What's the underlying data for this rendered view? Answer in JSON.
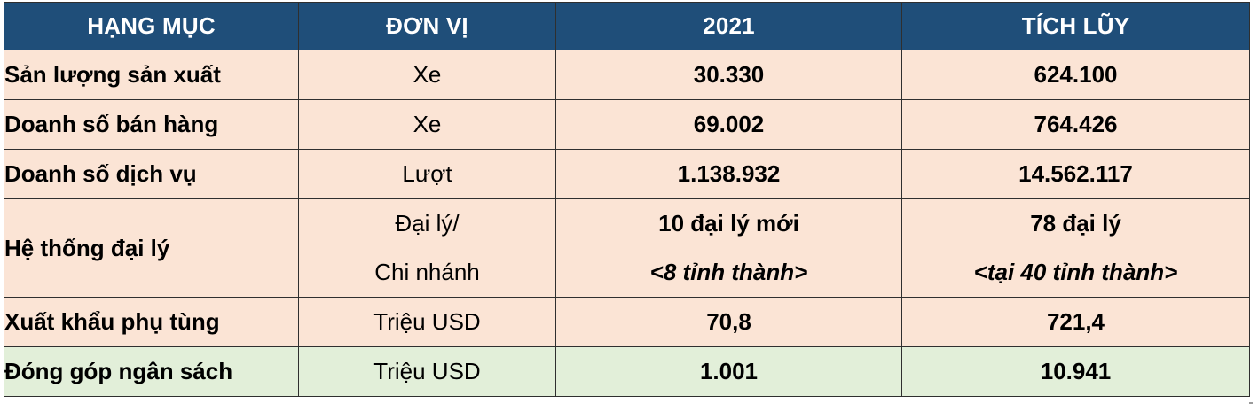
{
  "headers": [
    "HẠNG MỤC",
    "ĐƠN VỊ",
    "2021",
    "TÍCH LŨY"
  ],
  "rows": [
    {
      "label": "Sản lượng sản xuất",
      "unit": "Xe",
      "y2021": "30.330",
      "cumulative": "624.100"
    },
    {
      "label": "Doanh số bán hàng",
      "unit": "Xe",
      "y2021": "69.002",
      "cumulative": "764.426"
    },
    {
      "label": "Doanh số dịch vụ",
      "unit": "Lượt",
      "y2021": "1.138.932",
      "cumulative": "14.562.117"
    },
    {
      "label": "Hệ thống đại lý",
      "unit_line1": "Đại lý/",
      "unit_line2": "Chi nhánh",
      "y2021_line1": "10 đại lý mới",
      "y2021_line2": "<8 tỉnh thành>",
      "cumulative_line1": "78 đại lý",
      "cumulative_line2": "<tại 40 tỉnh thành>"
    },
    {
      "label": "Xuất khẩu phụ tùng",
      "unit": "Triệu USD",
      "y2021": "70,8",
      "cumulative": "721,4"
    },
    {
      "label": "Đóng góp ngân sách",
      "unit": "Triệu USD",
      "y2021": "1.001",
      "cumulative": "10.941"
    }
  ],
  "colors": {
    "header_bg": "#1f4e79",
    "header_text": "#ffffff",
    "row_bg": "#fbe4d5",
    "last_row_bg": "#e2efd9",
    "border": "#2f2f2f"
  }
}
